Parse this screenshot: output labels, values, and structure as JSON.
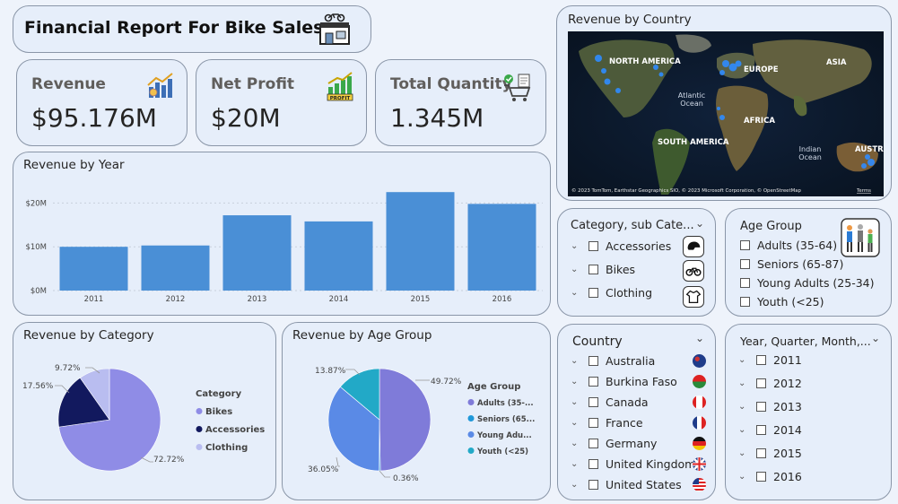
{
  "header": {
    "title": "Financial Report For Bike Sales",
    "icon": "bike-shop-icon"
  },
  "kpis": [
    {
      "label": "Revenue",
      "value": "$95.176M",
      "icon": "revenue-chart-icon"
    },
    {
      "label": "Net Profit",
      "value": "$20M",
      "icon": "profit-icon"
    },
    {
      "label": "Total Quantity",
      "value": "1.345M",
      "icon": "shopping-cart-icon"
    }
  ],
  "map": {
    "title": "Revenue by Country",
    "labels": [
      "NORTH AMERICA",
      "EUROPE",
      "ASIA",
      "Atlantic\nOcean",
      "AFRICA",
      "SOUTH AMERICA",
      "Indian\nOcean",
      "AUSTRA"
    ],
    "attribution": "© 2023 TomTom, Earthstar Geographics SIO, © 2023 Microsoft Corporation, © OpenStreetMap",
    "terms": "Terms"
  },
  "revenue_by_year": {
    "title": "Revenue by Year",
    "chart_data": {
      "type": "bar",
      "categories": [
        "2011",
        "2012",
        "2013",
        "2014",
        "2015",
        "2016"
      ],
      "values": [
        10.0,
        10.3,
        17.2,
        15.8,
        22.5,
        19.8
      ],
      "y_ticks": [
        "$0M",
        "$10M",
        "$20M"
      ],
      "ylim": [
        0,
        25
      ],
      "color": "#4a8fd6"
    }
  },
  "revenue_by_category": {
    "title": "Revenue by Category",
    "legend_title": "Category",
    "chart_data": {
      "type": "pie",
      "categories": [
        "Bikes",
        "Accessories",
        "Clothing"
      ],
      "values": [
        72.72,
        17.56,
        9.72
      ],
      "labels": [
        "72.72%",
        "17.56%",
        "9.72%"
      ],
      "colors": [
        "#8f8ce6",
        "#12195e",
        "#b9bdf0"
      ]
    }
  },
  "revenue_by_age_group": {
    "title": "Revenue by Age Group",
    "legend_title": "Age Group",
    "chart_data": {
      "type": "pie",
      "categories": [
        "Adults (35-...",
        "Seniors (65...",
        "Young Adu...",
        "Youth (<25)"
      ],
      "values": [
        49.72,
        0.36,
        36.05,
        13.87
      ],
      "labels": [
        "49.72%",
        "0.36%",
        "36.05%",
        "13.87%"
      ],
      "colors": [
        "#7f7bd9",
        "#1f98d9",
        "#5a8ae6",
        "#22a9c7"
      ]
    }
  },
  "category_slicer": {
    "title": "Category, sub Cate...",
    "items": [
      {
        "label": "Accessories",
        "icon": "helmet-icon"
      },
      {
        "label": "Bikes",
        "icon": "bicycle-icon"
      },
      {
        "label": "Clothing",
        "icon": "clothing-icon"
      }
    ]
  },
  "age_slicer": {
    "title": "Age Group",
    "icon": "people-icon",
    "items": [
      "Adults (35-64)",
      "Seniors (65-87)",
      "Young Adults (25-34)",
      "Youth (<25)"
    ]
  },
  "country_slicer": {
    "title": "Country",
    "items": [
      {
        "label": "Australia",
        "flag": "australia-flag-icon"
      },
      {
        "label": "Burkina Faso",
        "flag": "burkina-faso-flag-icon"
      },
      {
        "label": "Canada",
        "flag": "canada-flag-icon"
      },
      {
        "label": "France",
        "flag": "france-flag-icon"
      },
      {
        "label": "Germany",
        "flag": "germany-flag-icon"
      },
      {
        "label": "United Kingdom",
        "flag": "uk-flag-icon"
      },
      {
        "label": "United States",
        "flag": "usa-flag-icon"
      }
    ]
  },
  "date_slicer": {
    "title": "Year, Quarter, Month,...",
    "items": [
      "2011",
      "2012",
      "2013",
      "2014",
      "2015",
      "2016"
    ]
  }
}
